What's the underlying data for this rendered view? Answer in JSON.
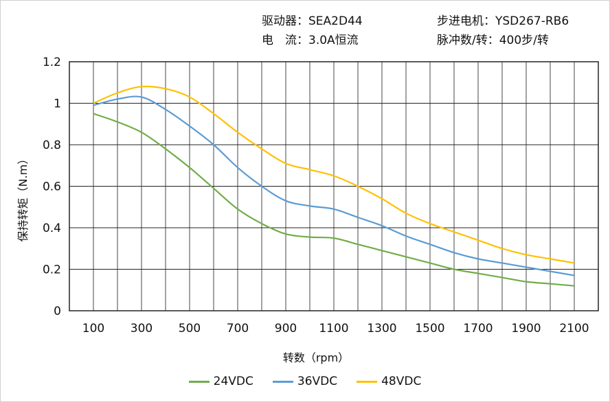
{
  "header": {
    "driver": "驱动器：SEA2D44",
    "motor": "步进电机：YSD267-RB6",
    "current": "电　流：3.0A恒流",
    "pulses": "脉冲数/转：400步/转"
  },
  "chart_data": {
    "type": "line",
    "xlabel": "转数（rpm）",
    "ylabel": "保持转矩（N.m）",
    "xlim": [
      0,
      2200
    ],
    "ylim": [
      0,
      1.2
    ],
    "x_ticks": [
      "100",
      "300",
      "500",
      "700",
      "900",
      "1100",
      "1300",
      "1500",
      "1700",
      "1900",
      "2100"
    ],
    "y_ticks": [
      "0",
      "0.2",
      "0.4",
      "0.6",
      "0.8",
      "1",
      "1.2"
    ],
    "grid": true,
    "legend_position": "bottom",
    "x": [
      100,
      200,
      300,
      400,
      500,
      600,
      700,
      800,
      900,
      1000,
      1100,
      1200,
      1300,
      1400,
      1500,
      1600,
      1700,
      1800,
      1900,
      2000,
      2100
    ],
    "series": [
      {
        "name": "24VDC",
        "color": "#70ad47",
        "values": [
          0.95,
          0.91,
          0.86,
          0.78,
          0.69,
          0.59,
          0.49,
          0.42,
          0.37,
          0.355,
          0.35,
          0.32,
          0.29,
          0.26,
          0.23,
          0.2,
          0.18,
          0.16,
          0.14,
          0.13,
          0.12
        ]
      },
      {
        "name": "36VDC",
        "color": "#5b9bd5",
        "values": [
          0.99,
          1.02,
          1.03,
          0.97,
          0.89,
          0.8,
          0.69,
          0.6,
          0.53,
          0.505,
          0.49,
          0.45,
          0.41,
          0.36,
          0.32,
          0.28,
          0.25,
          0.23,
          0.21,
          0.19,
          0.17
        ]
      },
      {
        "name": "48VDC",
        "color": "#ffc000",
        "values": [
          1.0,
          1.05,
          1.08,
          1.07,
          1.03,
          0.95,
          0.86,
          0.78,
          0.71,
          0.68,
          0.65,
          0.6,
          0.54,
          0.47,
          0.42,
          0.38,
          0.34,
          0.3,
          0.27,
          0.25,
          0.23
        ]
      }
    ]
  }
}
